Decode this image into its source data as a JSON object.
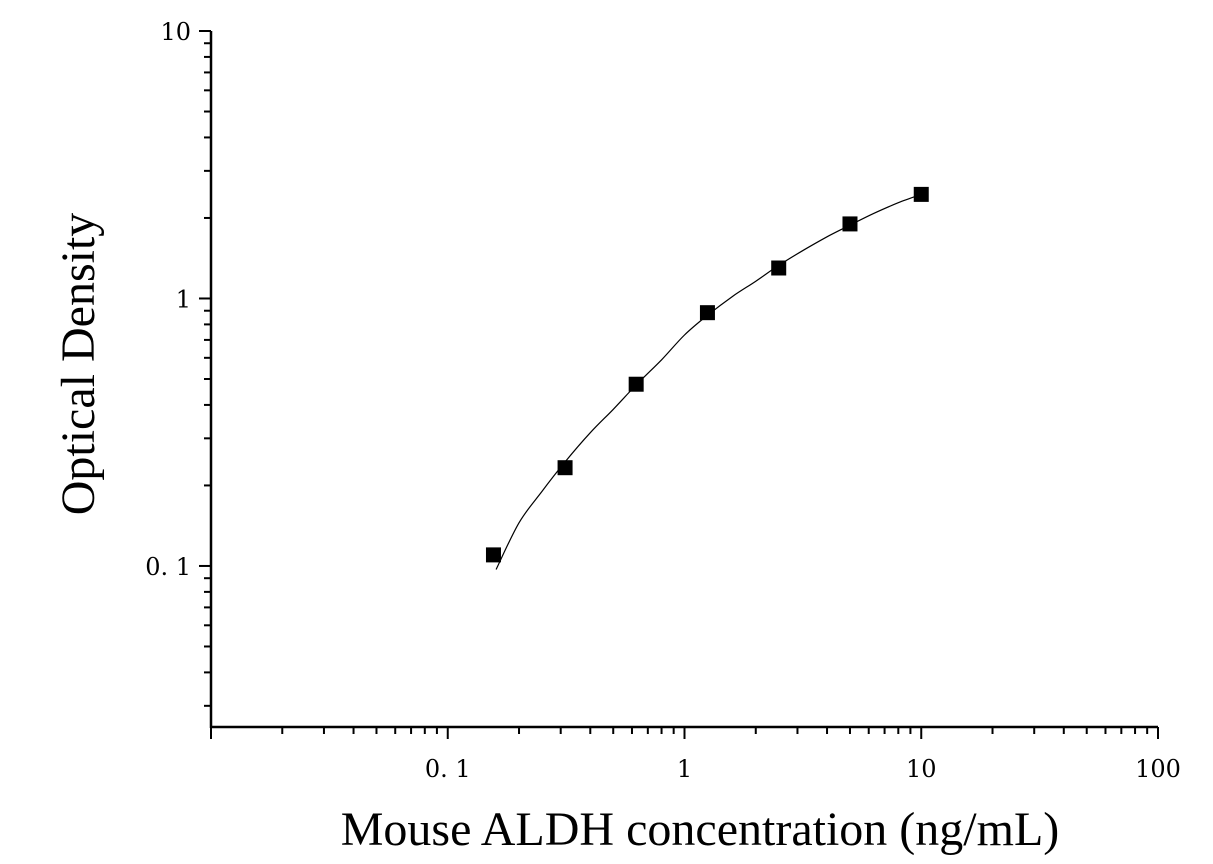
{
  "chart_data": {
    "type": "scatter",
    "title": "",
    "xlabel": "Mouse ALDH concentration (ng/mL)",
    "ylabel": "Optical Density",
    "xscale": "log",
    "yscale": "log",
    "xlim": [
      0.01,
      100
    ],
    "ylim": [
      0.025,
      10
    ],
    "x_ticks": [
      {
        "value": 0.1,
        "label": "0. 1"
      },
      {
        "value": 1,
        "label": "1"
      },
      {
        "value": 10,
        "label": "10"
      },
      {
        "value": 100,
        "label": "100"
      }
    ],
    "y_ticks": [
      {
        "value": 0.1,
        "label": "0. 1"
      },
      {
        "value": 1,
        "label": "1"
      },
      {
        "value": 10,
        "label": "10"
      }
    ],
    "grid": false,
    "legend": "none",
    "series": [
      {
        "marker": "square",
        "color": "#000000",
        "x": [
          0.156,
          0.313,
          0.625,
          1.25,
          2.5,
          5,
          10
        ],
        "y": [
          0.11,
          0.233,
          0.478,
          0.885,
          1.3,
          1.9,
          2.45
        ]
      }
    ],
    "fit_curve": {
      "color": "#000000",
      "x": [
        0.16,
        0.2,
        0.25,
        0.313,
        0.4,
        0.5,
        0.625,
        0.8,
        1.0,
        1.25,
        1.6,
        2.0,
        2.5,
        3.2,
        4.0,
        5.0,
        6.3,
        8.0,
        10.0
      ],
      "y": [
        0.097,
        0.145,
        0.19,
        0.245,
        0.315,
        0.385,
        0.475,
        0.59,
        0.73,
        0.865,
        1.02,
        1.16,
        1.33,
        1.52,
        1.7,
        1.88,
        2.08,
        2.28,
        2.45
      ]
    }
  }
}
